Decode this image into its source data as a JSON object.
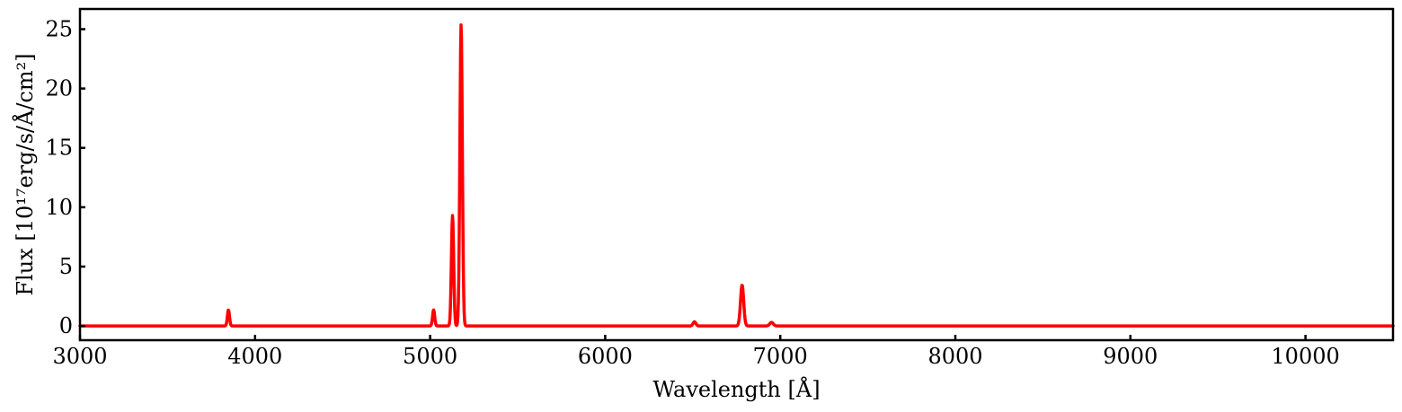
{
  "chart_data": {
    "type": "line",
    "xlabel": "Wavelength [Å]",
    "ylabel": "Flux [10¹⁷erg/s/Å/cm²]",
    "xlim": [
      3000,
      10500
    ],
    "ylim": [
      -1.2,
      26.7
    ],
    "xticks": [
      3000,
      4000,
      5000,
      6000,
      7000,
      8000,
      9000,
      10000
    ],
    "yticks": [
      0,
      5,
      10,
      15,
      20,
      25
    ],
    "grid": false,
    "colors": {
      "line": "#ff0000",
      "axes": "#000000"
    },
    "series": [
      {
        "color": "#ff0000",
        "lines": [
          {
            "center": 3848,
            "amplitude": 1.35,
            "sigma": 6
          },
          {
            "center": 5020,
            "amplitude": 1.35,
            "sigma": 6
          },
          {
            "center": 5128,
            "amplitude": 9.3,
            "sigma": 6.5
          },
          {
            "center": 5177,
            "amplitude": 25.4,
            "sigma": 7
          },
          {
            "center": 6510,
            "amplitude": 0.35,
            "sigma": 8
          },
          {
            "center": 6782,
            "amplitude": 3.45,
            "sigma": 9
          },
          {
            "center": 6950,
            "amplitude": 0.3,
            "sigma": 10
          }
        ],
        "baseline": 0
      }
    ]
  }
}
